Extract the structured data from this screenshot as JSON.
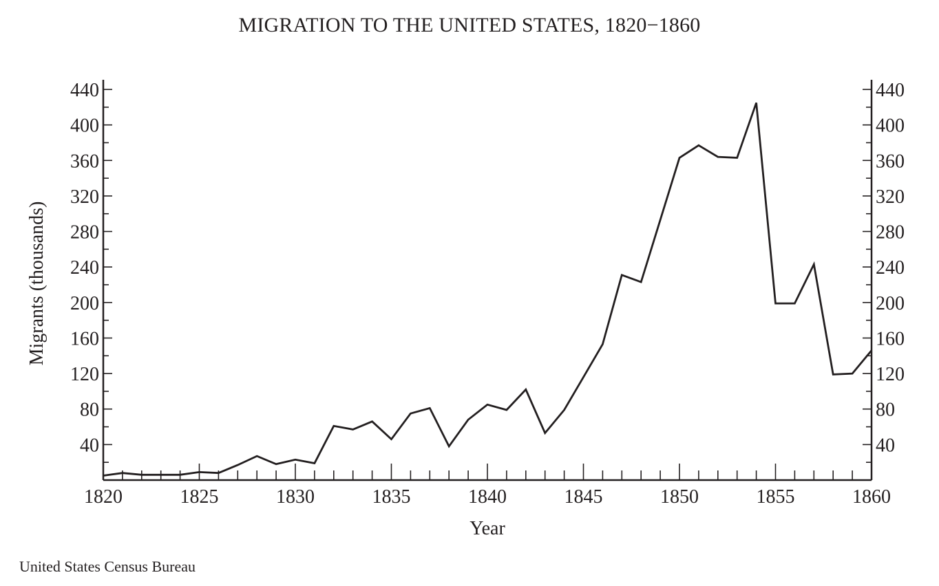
{
  "chart_data": {
    "type": "line",
    "title": "MIGRATION TO THE UNITED STATES, 1820−1860",
    "xlabel": "Year",
    "ylabel": "Migrants (thousands)",
    "source": "United States Census Bureau",
    "xlim": [
      1820,
      1860
    ],
    "ylim": [
      0,
      440
    ],
    "x_ticks": [
      1820,
      1825,
      1830,
      1835,
      1840,
      1845,
      1850,
      1855,
      1860
    ],
    "y_ticks": [
      40,
      80,
      120,
      160,
      200,
      240,
      280,
      320,
      360,
      400,
      440
    ],
    "y_axis_right_duplicate": true,
    "grid": false,
    "x": [
      1820,
      1821,
      1822,
      1823,
      1824,
      1825,
      1826,
      1827,
      1828,
      1829,
      1830,
      1831,
      1832,
      1833,
      1834,
      1835,
      1836,
      1837,
      1838,
      1839,
      1840,
      1841,
      1842,
      1843,
      1844,
      1845,
      1846,
      1847,
      1848,
      1849,
      1850,
      1851,
      1852,
      1853,
      1854,
      1855,
      1856,
      1857,
      1858,
      1859,
      1860
    ],
    "values": [
      5,
      8,
      6,
      6,
      6,
      9,
      8,
      17,
      27,
      18,
      23,
      19,
      61,
      57,
      66,
      46,
      75,
      81,
      38,
      68,
      85,
      79,
      102,
      53,
      79,
      116,
      153,
      231,
      223,
      293,
      363,
      377,
      364,
      363,
      425,
      199,
      199,
      243,
      119,
      120,
      146
    ],
    "line_color": "#231f20"
  }
}
